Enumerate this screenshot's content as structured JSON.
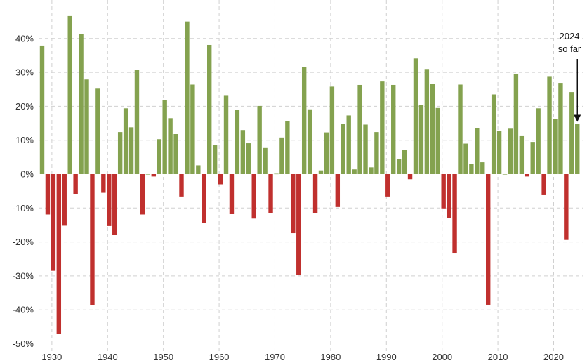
{
  "chart_data": {
    "type": "bar",
    "title": "",
    "xlabel": "",
    "ylabel": "",
    "ylim": [
      -50,
      50
    ],
    "xlim": [
      1928,
      2024
    ],
    "grid": true,
    "y_ticks": [
      40,
      30,
      20,
      10,
      0,
      -10,
      -20,
      -30,
      -40,
      -50
    ],
    "y_tick_labels": [
      "40%",
      "30%",
      "20%",
      "10%",
      "0%",
      "-10%",
      "-20%",
      "-30%",
      "-40%",
      "-50%"
    ],
    "x_ticks": [
      1930,
      1940,
      1950,
      1960,
      1970,
      1980,
      1990,
      2000,
      2010,
      2020
    ],
    "x_tick_labels": [
      "1930",
      "1940",
      "1950",
      "1960",
      "1970",
      "1980",
      "1990",
      "2000",
      "2010",
      "2020"
    ],
    "colors": {
      "positive": "#84a24f",
      "negative": "#c0302e"
    },
    "annotation": {
      "line1": "2024",
      "line2": "so far",
      "target_year": 2024
    },
    "years": [
      1928,
      1929,
      1930,
      1931,
      1932,
      1933,
      1934,
      1935,
      1936,
      1937,
      1938,
      1939,
      1940,
      1941,
      1942,
      1943,
      1944,
      1945,
      1946,
      1947,
      1948,
      1949,
      1950,
      1951,
      1952,
      1953,
      1954,
      1955,
      1956,
      1957,
      1958,
      1959,
      1960,
      1961,
      1962,
      1963,
      1964,
      1965,
      1966,
      1967,
      1968,
      1969,
      1970,
      1971,
      1972,
      1973,
      1974,
      1975,
      1976,
      1977,
      1978,
      1979,
      1980,
      1981,
      1982,
      1983,
      1984,
      1985,
      1986,
      1987,
      1988,
      1989,
      1990,
      1991,
      1992,
      1993,
      1994,
      1995,
      1996,
      1997,
      1998,
      1999,
      2000,
      2001,
      2002,
      2003,
      2004,
      2005,
      2006,
      2007,
      2008,
      2009,
      2010,
      2011,
      2012,
      2013,
      2014,
      2015,
      2016,
      2017,
      2018,
      2019,
      2020,
      2021,
      2022,
      2023,
      2024
    ],
    "values": [
      37.9,
      -11.9,
      -28.5,
      -47.1,
      -15.2,
      46.6,
      -5.9,
      41.4,
      27.9,
      -38.6,
      25.2,
      -5.5,
      -15.3,
      -17.9,
      12.4,
      19.4,
      13.8,
      30.7,
      -11.9,
      0.0,
      -0.7,
      10.3,
      21.8,
      16.5,
      11.8,
      -6.6,
      45.0,
      26.4,
      2.6,
      -14.3,
      38.1,
      8.5,
      -3.0,
      23.1,
      -11.8,
      18.9,
      13.0,
      9.1,
      -13.1,
      20.1,
      7.7,
      -11.4,
      0.1,
      10.8,
      15.6,
      -17.4,
      -29.7,
      31.5,
      19.1,
      -11.5,
      1.1,
      12.3,
      25.8,
      -9.7,
      14.8,
      17.3,
      1.4,
      26.3,
      14.6,
      2.0,
      12.4,
      27.3,
      -6.6,
      26.3,
      4.5,
      7.1,
      -1.5,
      34.1,
      20.3,
      31.0,
      26.7,
      19.5,
      -10.1,
      -13.0,
      -23.4,
      26.4,
      9.0,
      3.0,
      13.6,
      3.5,
      -38.5,
      23.5,
      12.8,
      0.0,
      13.4,
      29.6,
      11.4,
      -0.7,
      9.5,
      19.4,
      -6.2,
      28.9,
      16.3,
      26.9,
      -19.4,
      24.2,
      14.8
    ]
  }
}
